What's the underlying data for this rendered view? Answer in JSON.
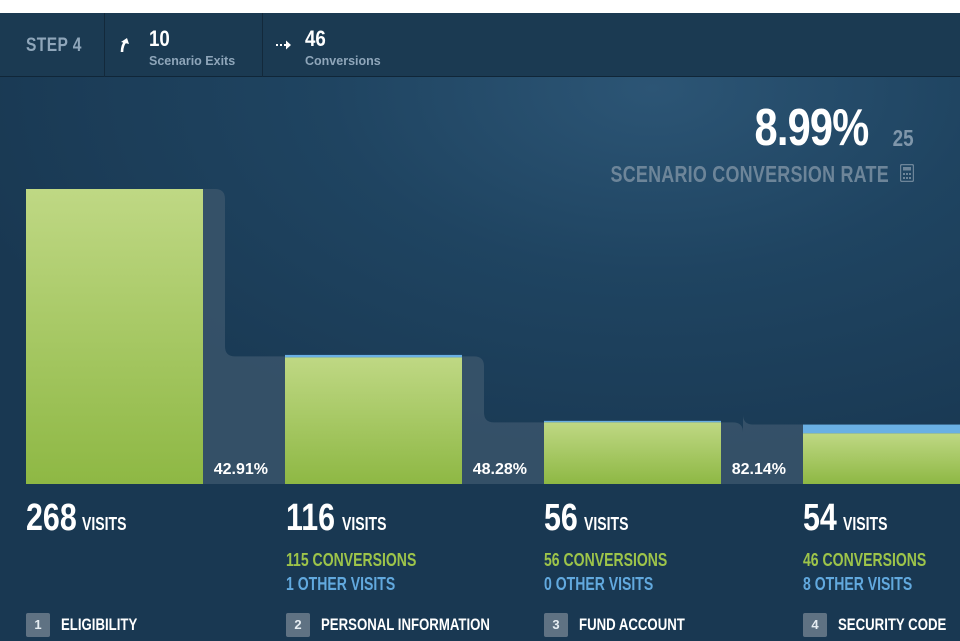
{
  "header": {
    "step_label": "STEP 4",
    "exits": {
      "value": "10",
      "label": "Scenario Exits",
      "icon": "arrow-up-icon"
    },
    "conversions": {
      "value": "46",
      "label": "Conversions",
      "icon": "arrow-right-icon"
    }
  },
  "rate": {
    "value": "8.99%",
    "aside": "25",
    "label": "SCENARIO CONVERSION RATE",
    "icon": "calculator-icon"
  },
  "colors": {
    "bar_top": "#bfd884",
    "bar_bottom": "#8eb844",
    "other_visits": "#6ab0e4",
    "connector": "#3a556b"
  },
  "chart_data": {
    "type": "bar",
    "categories": [
      "ELIGIBILITY",
      "PERSONAL INFORMATION",
      "FUND ACCOUNT",
      "SECURITY CODE"
    ],
    "visits": [
      268,
      116,
      56,
      54
    ],
    "conversions": [
      115,
      56,
      46
    ],
    "other_visits": [
      1,
      0,
      8
    ],
    "progression_rates": [
      "42.91%",
      "48.28%",
      "82.14%"
    ],
    "ylim": [
      0,
      268
    ]
  },
  "steps": [
    {
      "num": "1",
      "name": "ELIGIBILITY",
      "visits": "268",
      "visits_word": "VISITS"
    },
    {
      "num": "2",
      "name": "PERSONAL INFORMATION",
      "visits": "116",
      "visits_word": "VISITS",
      "conversions": "115 CONVERSIONS",
      "other": "1 OTHER VISITS"
    },
    {
      "num": "3",
      "name": "FUND ACCOUNT",
      "visits": "56",
      "visits_word": "VISITS",
      "conversions": "56 CONVERSIONS",
      "other": "0 OTHER VISITS"
    },
    {
      "num": "4",
      "name": "SECURITY CODE",
      "visits": "54",
      "visits_word": "VISITS",
      "conversions": "46 CONVERSIONS",
      "other": "8 OTHER VISITS"
    }
  ]
}
